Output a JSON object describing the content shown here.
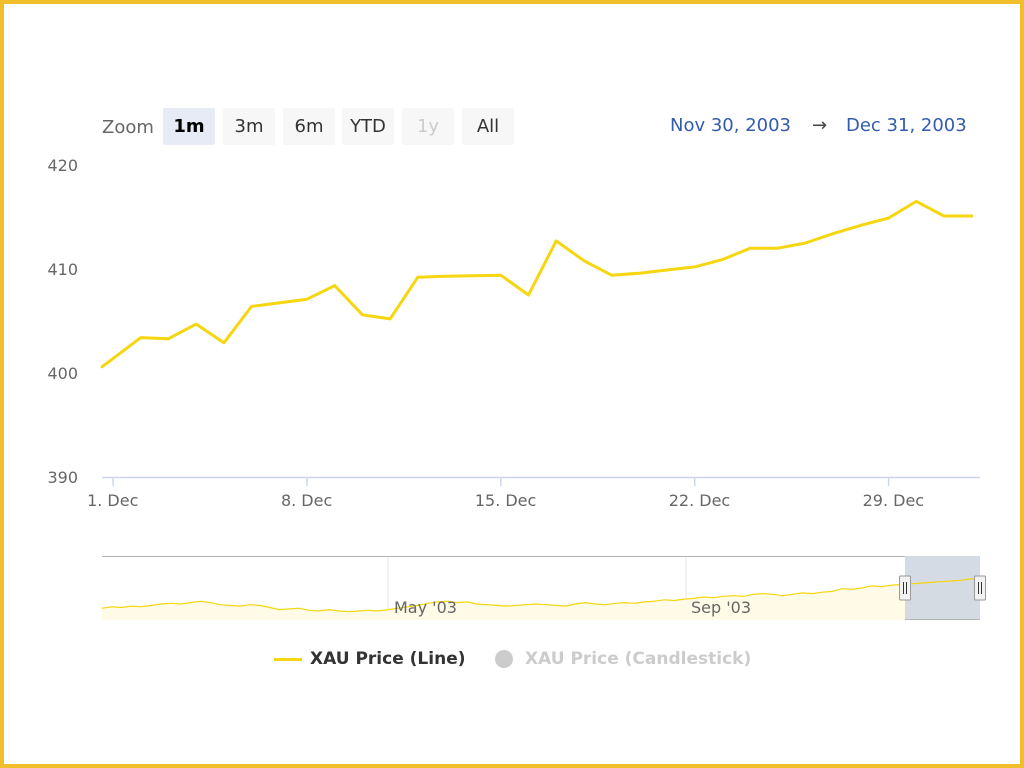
{
  "range_selector": {
    "zoom_label": "Zoom",
    "buttons": [
      {
        "label": "1m",
        "state": "active"
      },
      {
        "label": "3m",
        "state": "normal"
      },
      {
        "label": "6m",
        "state": "normal"
      },
      {
        "label": "YTD",
        "state": "normal"
      },
      {
        "label": "1y",
        "state": "disabled"
      },
      {
        "label": "All",
        "state": "normal"
      }
    ],
    "from": "Nov 30, 2003",
    "arrow": "→",
    "to": "Dec 31, 2003"
  },
  "chart_data": {
    "type": "line",
    "title": "",
    "xlabel": "",
    "ylabel": "",
    "ylim": [
      390,
      420
    ],
    "y_ticks": [
      "420",
      "410",
      "400",
      "390"
    ],
    "x_ticks": [
      {
        "label": "1. Dec",
        "day": 1
      },
      {
        "label": "8. Dec",
        "day": 8
      },
      {
        "label": "15. Dec",
        "day": 15
      },
      {
        "label": "22. Dec",
        "day": 22
      },
      {
        "label": "29. Dec",
        "day": 29
      }
    ],
    "xlim_days": [
      0.6,
      32.3
    ],
    "series": [
      {
        "name": "XAU Price (Line)",
        "color": "#f5d60f",
        "x_days": [
          0.6,
          2,
          3,
          4,
          5,
          6,
          8,
          9,
          10,
          11,
          12,
          13,
          15,
          16,
          17,
          18,
          19,
          20,
          21,
          22,
          23,
          24,
          25,
          26,
          27,
          28,
          29,
          30,
          31,
          32
        ],
        "y": [
          400.6,
          403.4,
          403.3,
          404.7,
          402.9,
          406.4,
          407.1,
          408.4,
          405.6,
          405.2,
          409.2,
          409.3,
          409.4,
          407.5,
          412.7,
          410.8,
          409.4,
          409.6,
          409.9,
          410.2,
          410.9,
          412.0,
          412.0,
          412.5,
          413.4,
          414.2,
          414.9,
          416.5,
          415.1,
          415.1
        ]
      }
    ],
    "legend": {
      "placement": "bottom-center",
      "items": [
        {
          "label": "XAU Price (Line)",
          "color": "#f5d60f",
          "visible": true
        },
        {
          "label": "XAU Price (Candlestick)",
          "color": "#cccccc",
          "visible": false
        }
      ]
    },
    "navigator": {
      "x_ticks": [
        "May '03",
        "Sep '03"
      ],
      "series_color": "#f5d60f",
      "fill_color": "#fffbe6",
      "selection_color": "#cdd5e0",
      "y_values": [
        394,
        395,
        394.5,
        395.5,
        395,
        396,
        397,
        397.5,
        397,
        398,
        399,
        398,
        396.5,
        396,
        395.5,
        396.5,
        396,
        394.5,
        393,
        393.5,
        394,
        392.5,
        392,
        393,
        392,
        391.5,
        392,
        392.5,
        392,
        393,
        394,
        395,
        396,
        397.5,
        398.5,
        399,
        398,
        398.5,
        397,
        396.5,
        396,
        395.5,
        396,
        396.5,
        397,
        396.5,
        396,
        395.5,
        397,
        398,
        397,
        396.5,
        397.5,
        398,
        397.5,
        398.5,
        399,
        400,
        399.5,
        400.5,
        401,
        402,
        401.5,
        402.5,
        403,
        402.5,
        404,
        404.5,
        404,
        403,
        404,
        405,
        404.5,
        405.5,
        406,
        408,
        407.5,
        408.5,
        410,
        409.5,
        410.5,
        411,
        411.5,
        412,
        412.5,
        413,
        413.5,
        414,
        415,
        415.5
      ]
    }
  }
}
